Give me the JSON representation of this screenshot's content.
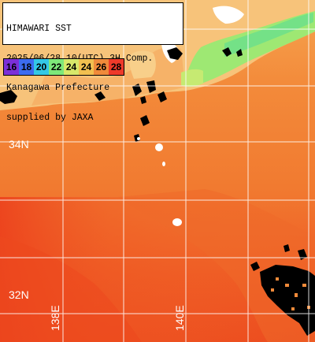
{
  "info": {
    "line1": "HIMAWARI SST",
    "line2": "2025/06/28 10(UTC) 3H Comp.",
    "line3": "Kanagawa Prefecture",
    "line4": "supplied by JAXA"
  },
  "legend": [
    {
      "value": "16",
      "color": "#7b2fd8"
    },
    {
      "value": "18",
      "color": "#3c6cf0"
    },
    {
      "value": "20",
      "color": "#33c8e6"
    },
    {
      "value": "22",
      "color": "#7ee87a"
    },
    {
      "value": "24",
      "color": "#d8e86a"
    },
    {
      "value": "24",
      "color": "#f2c050"
    },
    {
      "value": "26",
      "color": "#f08a3a"
    },
    {
      "value": "28",
      "color": "#ee3a2a"
    }
  ],
  "grid": {
    "latitudes": [
      "34N",
      "32N"
    ],
    "longitudes": [
      "138E",
      "140E"
    ]
  },
  "colors": {
    "land": "#f7c37a",
    "warm_sea": "#f28836",
    "hot_sea": "#ee4a20",
    "cool_coast": "#8ee86a",
    "cloud": "#000000",
    "gridline": "#ffffff"
  }
}
